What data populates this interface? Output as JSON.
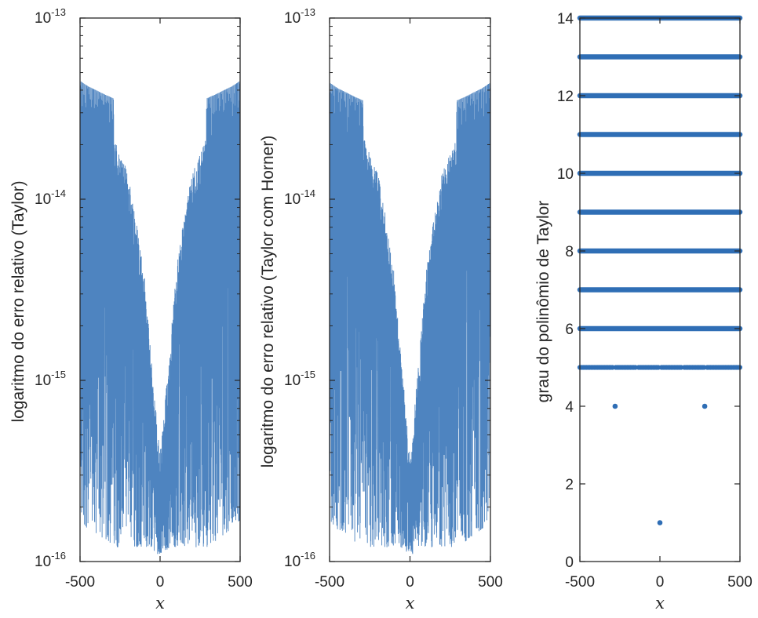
{
  "chart_data": [
    {
      "type": "line",
      "title": "",
      "xlabel": "x",
      "ylabel": "logaritmo do erro relativo (Taylor)",
      "xlim": [
        -500,
        500
      ],
      "ylim": [
        1e-16,
        1e-13
      ],
      "yscale": "log",
      "xticks": [
        "-500",
        "0",
        "500"
      ],
      "yticks": [
        {
          "base": "10",
          "exp": "-16"
        },
        {
          "base": "10",
          "exp": "-15"
        },
        {
          "base": "10",
          "exp": "-14"
        },
        {
          "base": "10",
          "exp": "-13"
        }
      ],
      "color": "#2f6eb5",
      "series": [
        {
          "name": "erro relativo",
          "envelope_x": [
            -500,
            -450,
            -400,
            -350,
            -290,
            -289,
            -250,
            -200,
            -150,
            -100,
            -60,
            -20,
            0,
            20,
            60,
            100,
            150,
            200,
            250,
            289,
            290,
            350,
            400,
            450,
            500
          ],
          "envelope_upper": [
            4.5e-14,
            4.2e-14,
            4e-14,
            3.8e-14,
            3.6e-14,
            2.2e-14,
            1.8e-14,
            1.4e-14,
            8e-15,
            4e-15,
            1.5e-15,
            6e-16,
            4e-16,
            6e-16,
            1.5e-15,
            4e-15,
            8e-15,
            1.4e-14,
            1.8e-14,
            2.2e-14,
            3.6e-14,
            3.8e-14,
            4e-14,
            4.2e-14,
            4.5e-14
          ],
          "envelope_lower": [
            1.7e-16,
            1.5e-16,
            1.4e-16,
            1.3e-16,
            1.2e-16,
            1.2e-16,
            1.2e-16,
            1.2e-16,
            1.2e-16,
            1.2e-16,
            1.2e-16,
            1.1e-16,
            1.1e-16,
            1.1e-16,
            1.2e-16,
            1.2e-16,
            1.2e-16,
            1.2e-16,
            1.2e-16,
            1.2e-16,
            1.2e-16,
            1.3e-16,
            1.4e-16,
            1.5e-16,
            1.7e-16
          ]
        }
      ]
    },
    {
      "type": "line",
      "title": "",
      "xlabel": "x",
      "ylabel": "logaritmo do erro relativo (Taylor com Horner)",
      "xlim": [
        -500,
        500
      ],
      "ylim": [
        1e-16,
        1e-13
      ],
      "yscale": "log",
      "xticks": [
        "-500",
        "0",
        "500"
      ],
      "yticks": [
        {
          "base": "10",
          "exp": "-16"
        },
        {
          "base": "10",
          "exp": "-15"
        },
        {
          "base": "10",
          "exp": "-14"
        },
        {
          "base": "10",
          "exp": "-13"
        }
      ],
      "color": "#2f6eb5",
      "series": [
        {
          "name": "erro relativo Horner",
          "envelope_x": [
            -500,
            -450,
            -400,
            -350,
            -290,
            -289,
            -250,
            -200,
            -150,
            -100,
            -60,
            -20,
            0,
            20,
            60,
            100,
            150,
            200,
            250,
            289,
            290,
            350,
            400,
            450,
            500
          ],
          "envelope_upper": [
            4.4e-14,
            4.1e-14,
            3.9e-14,
            3.7e-14,
            3.5e-14,
            2.2e-14,
            1.8e-14,
            1.4e-14,
            8e-15,
            4e-15,
            1.5e-15,
            6e-16,
            4e-16,
            6e-16,
            1.5e-15,
            4e-15,
            8e-15,
            1.4e-14,
            1.8e-14,
            2.2e-14,
            3.5e-14,
            3.7e-14,
            3.9e-14,
            4.1e-14,
            4.4e-14
          ],
          "envelope_lower": [
            1.7e-16,
            1.5e-16,
            1.4e-16,
            1.3e-16,
            1.2e-16,
            1.2e-16,
            1.2e-16,
            1.2e-16,
            1.2e-16,
            1.2e-16,
            1.2e-16,
            1.1e-16,
            1.1e-16,
            1.1e-16,
            1.2e-16,
            1.2e-16,
            1.2e-16,
            1.2e-16,
            1.2e-16,
            1.2e-16,
            1.2e-16,
            1.3e-16,
            1.4e-16,
            1.5e-16,
            1.7e-16
          ]
        }
      ]
    },
    {
      "type": "scatter",
      "title": "",
      "xlabel": "x",
      "ylabel": "grau do polinômio de Taylor",
      "xlim": [
        -500,
        500
      ],
      "ylim": [
        0,
        14
      ],
      "xticks": [
        "-500",
        "0",
        "500"
      ],
      "yticks": [
        "0",
        "2",
        "4",
        "6",
        "8",
        "10",
        "12",
        "14"
      ],
      "color": "#2f6eb5",
      "series": [
        {
          "name": "grau",
          "levels_full_range": [
            6,
            7,
            8,
            9,
            10,
            11,
            12,
            13,
            14
          ],
          "level_5_x_range": [
            -500,
            500
          ],
          "isolated_points": [
            {
              "x": -280,
              "y": 4
            },
            {
              "x": 280,
              "y": 4
            },
            {
              "x": 0,
              "y": 1
            }
          ]
        }
      ]
    }
  ]
}
